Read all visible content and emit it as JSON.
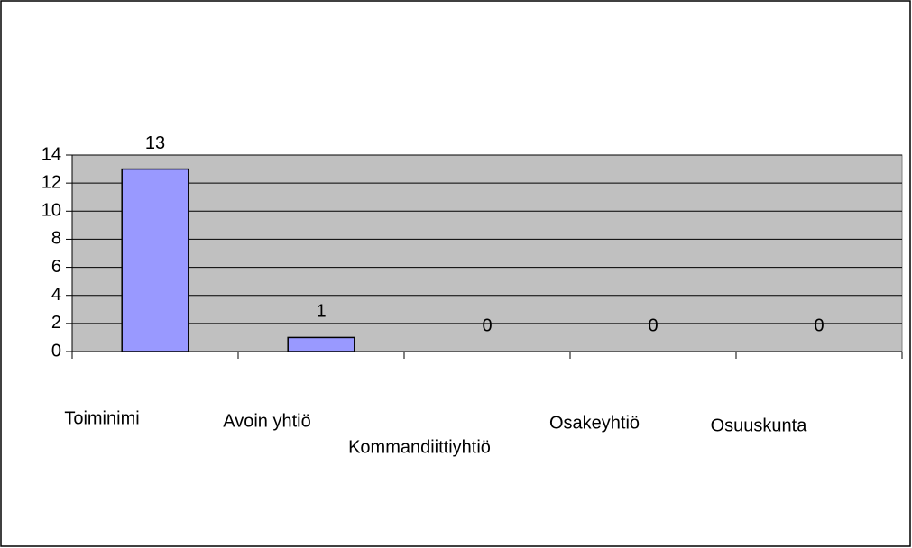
{
  "chart_data": {
    "type": "bar",
    "categories": [
      "Toiminimi",
      "Avoin yhtiö",
      "Kommandiittiyhtiö",
      "Osakeyhtiö",
      "Osuuskunta"
    ],
    "values": [
      13,
      1,
      0,
      0,
      0
    ],
    "color": "#9999ff",
    "ylim": [
      0,
      14
    ],
    "yticks": [
      0,
      2,
      4,
      6,
      8,
      10,
      12,
      14
    ],
    "grid": true
  }
}
